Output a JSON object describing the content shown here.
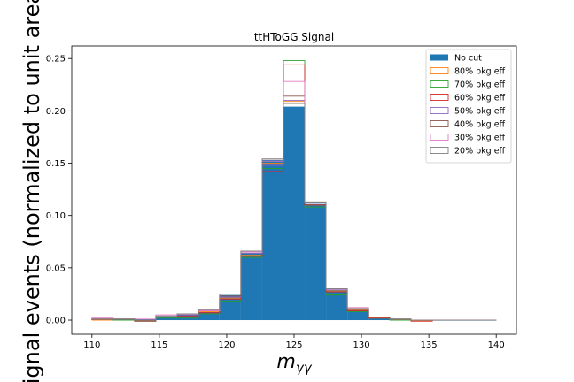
{
  "chart_data": {
    "type": "bar",
    "title": "ttHToGG Signal",
    "xlabel": "m_{γγ}",
    "ylabel": "Signal events (normalized to unit area)",
    "xlim": [
      108.5,
      141.5
    ],
    "ylim": [
      -0.0135,
      0.262
    ],
    "x_ticks": [
      110,
      115,
      120,
      125,
      130,
      135,
      140
    ],
    "y_ticks": [
      0.0,
      0.05,
      0.1,
      0.15,
      0.2,
      0.25
    ],
    "y_tick_labels": [
      "0.00",
      "0.05",
      "0.10",
      "0.15",
      "0.20",
      "0.25"
    ],
    "bin_edges": [
      110,
      111.58,
      113.16,
      114.74,
      116.32,
      117.89,
      119.47,
      121.05,
      122.63,
      124.21,
      125.79,
      127.37,
      128.95,
      130.53,
      132.11,
      133.68,
      135.26,
      136.84,
      138.42,
      140
    ],
    "legend_loc": "upper right",
    "grid": false,
    "series": [
      {
        "name": "No cut",
        "style": "filled",
        "color": "#1f77b4",
        "values": [
          0.001,
          0.001,
          0.001,
          0.003,
          0.005,
          0.008,
          0.024,
          0.064,
          0.153,
          0.204,
          0.111,
          0.029,
          0.01,
          0.002,
          0.001,
          0.0,
          0.0,
          0.0,
          0.0
        ]
      },
      {
        "name": "80% bkg eff",
        "style": "step",
        "color": "#ff7f0e",
        "values": [
          0.0,
          0.001,
          -0.001,
          0.003,
          0.003,
          0.008,
          0.021,
          0.062,
          0.15,
          0.209,
          0.11,
          0.028,
          0.01,
          0.002,
          0.0,
          -0.001,
          0.0,
          0.0,
          0.0
        ]
      },
      {
        "name": "70% bkg eff",
        "style": "step",
        "color": "#2ca02c",
        "values": [
          0.001,
          0.0,
          -0.001,
          0.002,
          0.002,
          0.006,
          0.018,
          0.06,
          0.145,
          0.248,
          0.108,
          0.024,
          0.008,
          0.002,
          0.0,
          0.0,
          0.0,
          0.0,
          0.0
        ]
      },
      {
        "name": "60% bkg eff",
        "style": "step",
        "color": "#d62728",
        "values": [
          0.001,
          0.001,
          -0.001,
          0.003,
          0.004,
          0.007,
          0.02,
          0.061,
          0.142,
          0.244,
          0.11,
          0.027,
          0.009,
          0.002,
          0.001,
          -0.001,
          0.0,
          0.0,
          0.0
        ]
      },
      {
        "name": "50% bkg eff",
        "style": "step",
        "color": "#9467bd",
        "values": [
          0.001,
          0.001,
          0.0,
          0.004,
          0.005,
          0.009,
          0.022,
          0.064,
          0.148,
          0.21,
          0.112,
          0.029,
          0.011,
          0.003,
          0.001,
          0.0,
          0.0,
          0.0,
          0.0
        ]
      },
      {
        "name": "40% bkg eff",
        "style": "step",
        "color": "#8c564b",
        "values": [
          0.001,
          0.001,
          -0.001,
          0.003,
          0.006,
          0.01,
          0.023,
          0.066,
          0.154,
          0.214,
          0.113,
          0.03,
          0.011,
          0.003,
          0.001,
          0.0,
          0.0,
          0.0,
          0.0
        ]
      },
      {
        "name": "30% bkg eff",
        "style": "step",
        "color": "#e377c2",
        "values": [
          0.002,
          0.001,
          0.001,
          0.005,
          0.006,
          0.009,
          0.025,
          0.065,
          0.152,
          0.228,
          0.112,
          0.03,
          0.012,
          0.003,
          0.001,
          0.0,
          0.0,
          0.0,
          0.0
        ]
      },
      {
        "name": "20% bkg eff",
        "style": "step",
        "color": "#7f7f7f",
        "values": [
          0.001,
          0.001,
          0.0,
          0.004,
          0.006,
          0.01,
          0.025,
          0.066,
          0.154,
          0.207,
          0.112,
          0.03,
          0.011,
          0.003,
          0.001,
          0.0,
          0.0,
          0.0,
          0.0
        ]
      }
    ]
  }
}
